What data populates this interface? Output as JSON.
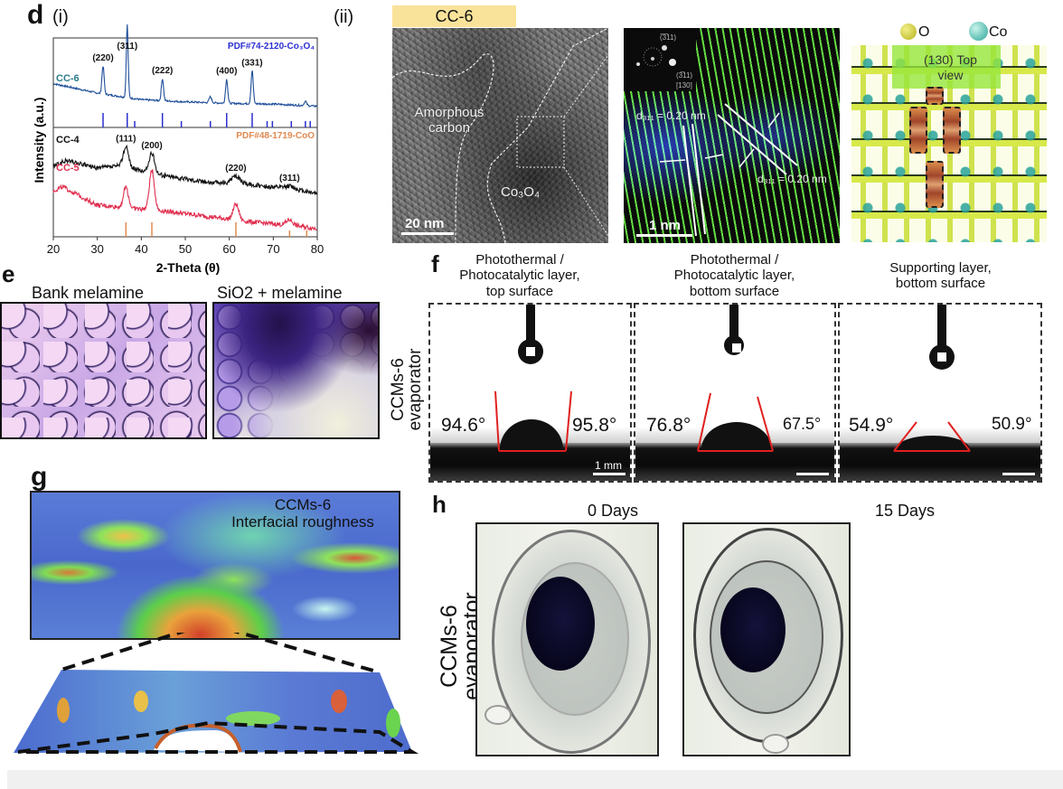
{
  "figure": {
    "panel_letters": {
      "d": "d",
      "e": "e",
      "f": "f",
      "g": "g",
      "h": "h"
    },
    "d": {
      "sub_i": "(i)",
      "sub_ii": "(ii)",
      "cc6_badge": "CC-6",
      "tem_labels": {
        "amorphous": "Amorphous carbon",
        "co_oxide": "Co₃O₄",
        "scale_20nm": "20 nm"
      },
      "hrtem_labels": {
        "fft_spot1": "(̅3̅11)",
        "fft_spot2": "(3̅11)",
        "zone_axis": "[130]",
        "d_spacing_1": "d₃₁₁ = 0.20 nm",
        "d_spacing_2": "d₃₁₁ = 0.20 nm",
        "scale_1nm": "1 nm"
      },
      "crystal": {
        "legend_O": "O",
        "legend_Co": "Co",
        "view_label_1": "(130) Top",
        "view_label_2": "view",
        "colors": {
          "O": "#c9c62a",
          "Co": "#2fb3a2"
        }
      }
    },
    "e": {
      "titles": [
        "Bank melamine",
        "SiO2 + melamine"
      ]
    },
    "f": {
      "row_label_1": "CCMs-6",
      "row_label_2": "evaporator",
      "panels": [
        {
          "title": [
            "Photothermal /",
            "Photocatalytic layer,",
            "top surface"
          ],
          "left_angle": "94.6°",
          "right_angle": "95.8°",
          "scale": "1 mm"
        },
        {
          "title": [
            "Photothermal /",
            "Photocatalytic layer,",
            "bottom surface"
          ],
          "left_angle": "76.8°",
          "right_angle": "67.5°",
          "scale": ""
        },
        {
          "title": [
            "Supporting layer,",
            "bottom surface"
          ],
          "left_angle": "54.9°",
          "right_angle": "50.9°",
          "scale": ""
        }
      ]
    },
    "g": {
      "label_1": "CCMs-6",
      "label_2": "Interfacial roughness"
    },
    "h": {
      "row_label_1": "CCMs-6",
      "row_label_2": "evaporator",
      "days": [
        "0 Days",
        "15 Days"
      ]
    }
  },
  "chart_data": {
    "type": "line",
    "title": "",
    "xlabel": "2-Theta (θ)",
    "ylabel": "Intensity (a.u.)",
    "xlim": [
      20,
      80
    ],
    "xticks": [
      20,
      30,
      40,
      50,
      60,
      70,
      80
    ],
    "grid": false,
    "panels": [
      {
        "name": "top",
        "reference": {
          "label": "PDF#74-2120-Co₃O₄",
          "color": "#2b2fcf",
          "lines": [
            31.3,
            36.8,
            38.5,
            44.8,
            49.1,
            55.7,
            59.4,
            65.2,
            68.6,
            69.8,
            74.1,
            77.3,
            78.4
          ]
        },
        "series": [
          {
            "name": "CC-6",
            "color": "#1f4f9a",
            "label_color": "#2a7a8a",
            "baseline": [
              [
                20,
                0.55
              ],
              [
                30,
                0.42
              ],
              [
                40,
                0.33
              ],
              [
                50,
                0.3
              ],
              [
                60,
                0.28
              ],
              [
                70,
                0.27
              ],
              [
                80,
                0.24
              ]
            ],
            "peaks": [
              {
                "x": 31.3,
                "h": 0.38,
                "w": 0.35,
                "label": "(220)"
              },
              {
                "x": 36.8,
                "h": 1.0,
                "w": 0.3,
                "label": "(311)"
              },
              {
                "x": 44.8,
                "h": 0.3,
                "w": 0.35,
                "label": "(222)"
              },
              {
                "x": 55.7,
                "h": 0.08,
                "w": 0.4,
                "label": ""
              },
              {
                "x": 59.4,
                "h": 0.33,
                "w": 0.35,
                "label": "(400)"
              },
              {
                "x": 65.2,
                "h": 0.45,
                "w": 0.35,
                "label": "(331)"
              },
              {
                "x": 77.3,
                "h": 0.06,
                "w": 0.4,
                "label": ""
              }
            ]
          }
        ]
      },
      {
        "name": "bottom",
        "reference": {
          "label": "PDF#48-1719-CoO",
          "color": "#e08a50",
          "lines": [
            36.5,
            42.4,
            61.5,
            73.7,
            77.6
          ]
        },
        "series": [
          {
            "name": "CC-4",
            "color": "#111111",
            "label_color": "#111111",
            "baseline": [
              [
                20,
                0.72
              ],
              [
                23,
                0.78
              ],
              [
                30,
                0.7
              ],
              [
                35,
                0.72
              ],
              [
                45,
                0.62
              ],
              [
                55,
                0.55
              ],
              [
                65,
                0.52
              ],
              [
                75,
                0.47
              ],
              [
                80,
                0.43
              ]
            ],
            "peaks": [
              {
                "x": 36.5,
                "h": 0.22,
                "w": 0.9,
                "label": "(111)"
              },
              {
                "x": 42.4,
                "h": 0.21,
                "w": 0.9,
                "label": "(200)"
              },
              {
                "x": 61.5,
                "h": 0.08,
                "w": 1.4,
                "label": "(220)"
              },
              {
                "x": 73.7,
                "h": 0.03,
                "w": 1.4,
                "label": "(311)"
              }
            ]
          },
          {
            "name": "CC-5",
            "color": "#e03050",
            "label_color": "#e03050",
            "baseline": [
              [
                20,
                0.45
              ],
              [
                22,
                0.5
              ],
              [
                30,
                0.3
              ],
              [
                35,
                0.28
              ],
              [
                45,
                0.24
              ],
              [
                55,
                0.18
              ],
              [
                65,
                0.12
              ],
              [
                75,
                0.08
              ],
              [
                80,
                0.05
              ]
            ],
            "peaks": [
              {
                "x": 36.5,
                "h": 0.22,
                "w": 0.8,
                "label": ""
              },
              {
                "x": 42.4,
                "h": 0.43,
                "w": 0.8,
                "label": ""
              },
              {
                "x": 61.5,
                "h": 0.17,
                "w": 0.9,
                "label": ""
              },
              {
                "x": 73.7,
                "h": 0.06,
                "w": 1.0,
                "label": ""
              }
            ]
          }
        ]
      }
    ]
  }
}
